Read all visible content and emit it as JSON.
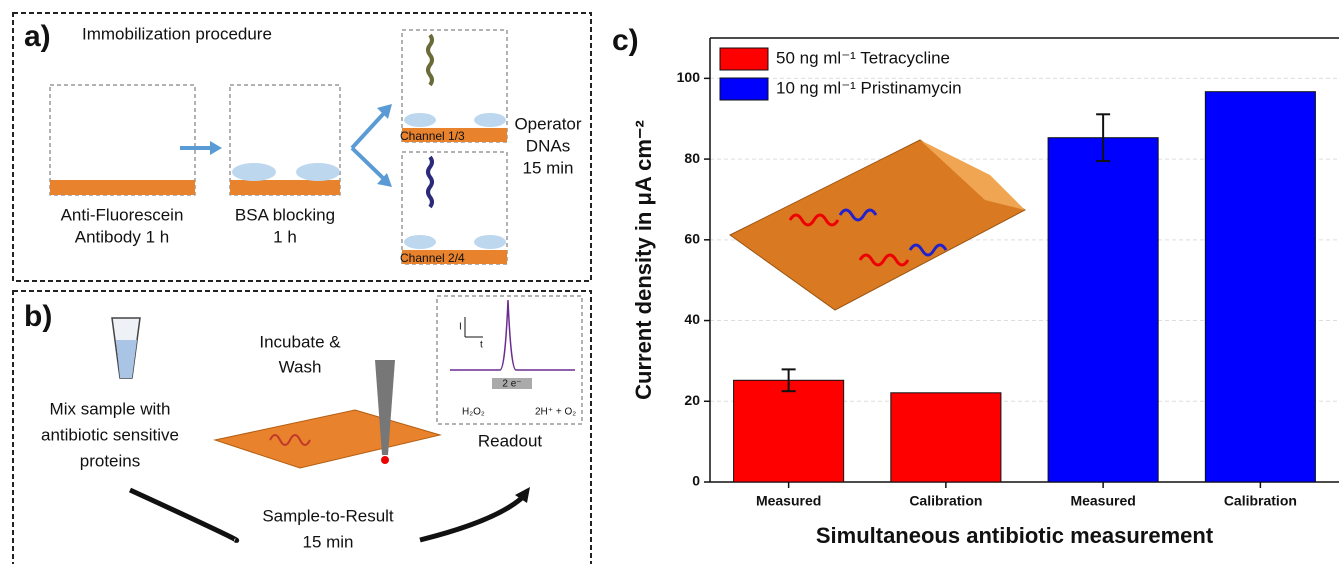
{
  "panels": {
    "a": {
      "label": "a)",
      "title": "Immobilization procedure",
      "step1": [
        "Anti-Fluorescein",
        "Antibody 1 h"
      ],
      "step2": [
        "BSA blocking",
        "1 h"
      ],
      "channels": [
        "Channel 1/3",
        "Channel 2/4"
      ],
      "operator": [
        "Operator",
        "DNAs",
        "15 min"
      ]
    },
    "b": {
      "label": "b)",
      "mix": [
        "Mix sample with",
        "antibiotic sensitive",
        "proteins"
      ],
      "incubate": [
        "Incubate &",
        "Wash"
      ],
      "result": [
        "Sample-to-Result",
        "15 min"
      ],
      "readout": "Readout",
      "inset": {
        "y_axis": "I",
        "x_axis": "t",
        "electrons": "2 e⁻",
        "reactant": "H₂O₂",
        "product": "2H⁺ + O₂"
      }
    }
  },
  "chart_data": {
    "type": "bar",
    "panel_label": "c)",
    "x_label": "Simultaneous antibiotic measurement",
    "y_label": "Current density in μA cm⁻²",
    "categories": [
      "Measured",
      "Calibration",
      "Measured",
      "Calibration"
    ],
    "series": [
      {
        "name": "50 ng ml⁻¹ Tetracycline",
        "color": "#ff0000",
        "values": [
          25.2,
          22.1,
          null,
          null
        ],
        "errors": [
          2.7,
          null,
          null,
          null
        ]
      },
      {
        "name": "10 ng ml⁻¹ Pristinamycin",
        "color": "#0000ff",
        "values": [
          null,
          null,
          85.3,
          96.7
        ],
        "errors": [
          null,
          null,
          5.8,
          null
        ]
      }
    ],
    "ylim": [
      0,
      110
    ],
    "yticks": [
      0,
      20,
      40,
      60,
      80,
      100
    ],
    "grid": true,
    "legend": "top-left"
  }
}
